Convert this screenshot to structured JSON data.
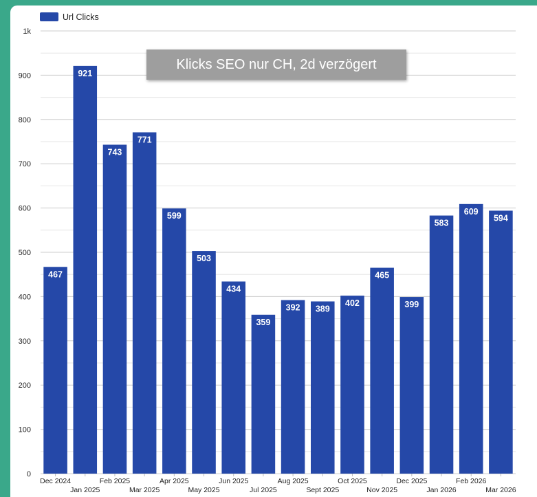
{
  "chart_data": {
    "type": "bar",
    "title": "Klicks SEO nur CH, 2d verzögert",
    "categories": [
      "Dec 2024",
      "Jan 2025",
      "Feb 2025",
      "Mar 2025",
      "Apr 2025",
      "May 2025",
      "Jun 2025",
      "Jul 2025",
      "Aug 2025",
      "Sept 2025",
      "Oct 2025",
      "Nov 2025",
      "Dec 2025",
      "Jan 2026",
      "Feb 2026",
      "Mar 2026"
    ],
    "series": [
      {
        "name": "Url Clicks",
        "values": [
          467,
          921,
          743,
          771,
          599,
          503,
          434,
          359,
          392,
          389,
          402,
          465,
          399,
          583,
          609,
          594
        ]
      }
    ],
    "ylim": [
      0,
      1000
    ],
    "yticks": [
      0,
      100,
      200,
      300,
      400,
      500,
      600,
      700,
      800,
      900
    ],
    "ytick_top_label": "1k",
    "xlabel": "",
    "ylabel": "",
    "legend_position": "top-left",
    "grid": true,
    "bar_color": "#2548a8",
    "data_labels": true
  }
}
